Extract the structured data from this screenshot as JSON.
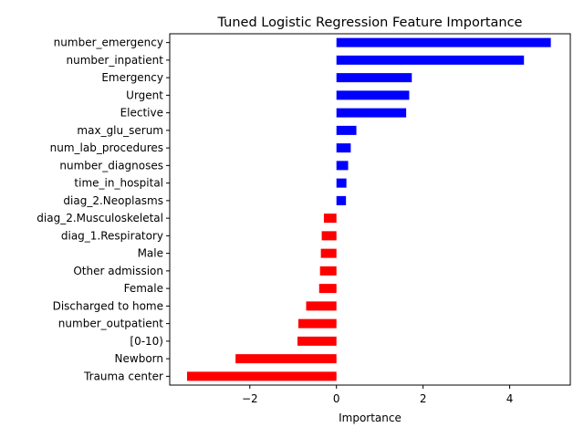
{
  "chart_data": {
    "type": "bar",
    "orientation": "horizontal",
    "title": "Tuned Logistic Regression Feature Importance",
    "xlabel": "Importance",
    "ylabel": "",
    "xlim": [
      -3.85,
      5.4
    ],
    "xticks": [
      -2,
      0,
      2,
      4
    ],
    "xtick_labels": [
      "−2",
      "0",
      "2",
      "4"
    ],
    "positive_color": "#0000ff",
    "negative_color": "#ff0000",
    "grid": false,
    "categories": [
      "number_emergency",
      "number_inpatient",
      "Emergency",
      "Urgent",
      "Elective",
      "max_glu_serum",
      "num_lab_procedures",
      "number_diagnoses",
      "time_in_hospital",
      "diag_2.Neoplasms",
      "diag_2.Musculoskeletal",
      "diag_1.Respiratory",
      "Male",
      "Other admission",
      "Female",
      "Discharged to home",
      "number_outpatient",
      "[0-10)",
      "Newborn",
      "Trauma center"
    ],
    "values": [
      4.95,
      4.33,
      1.74,
      1.68,
      1.61,
      0.46,
      0.33,
      0.27,
      0.23,
      0.22,
      -0.29,
      -0.34,
      -0.36,
      -0.38,
      -0.4,
      -0.7,
      -0.88,
      -0.9,
      -2.33,
      -3.45
    ]
  }
}
